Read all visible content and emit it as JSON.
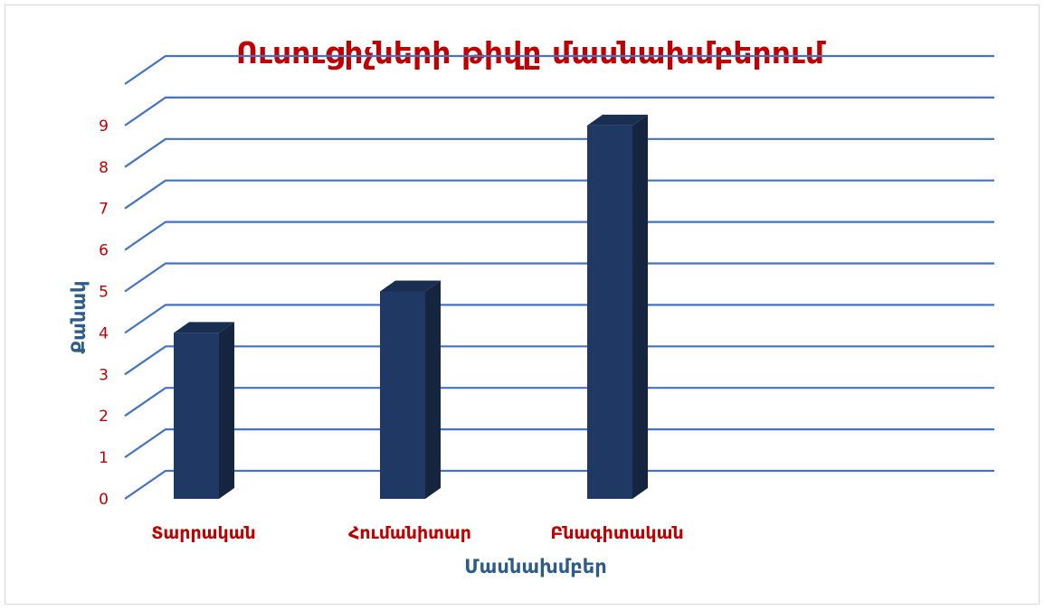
{
  "chart_data": {
    "type": "bar",
    "title": "Ուսուցիչների թիվը մասնախմբերում",
    "xlabel": "Մասնախմբեր",
    "ylabel": "Քանակ",
    "categories": [
      "Տարրական",
      "Հումանիտար",
      "Բնագիտական"
    ],
    "values": [
      4,
      5,
      9
    ],
    "ylim": [
      0,
      9
    ],
    "yticks": [
      "0",
      "1",
      "2",
      "3",
      "4",
      "5",
      "6",
      "7",
      "8",
      "9"
    ],
    "grid": true,
    "legend": "none",
    "colors": {
      "bar_front": "#1f3864",
      "bar_side": "#152540",
      "bar_top": "#1a2e52",
      "grid": "#4472c4",
      "title": "#c00000",
      "tick_labels": "#c00000",
      "axis_title": "#2e5c8a"
    }
  }
}
